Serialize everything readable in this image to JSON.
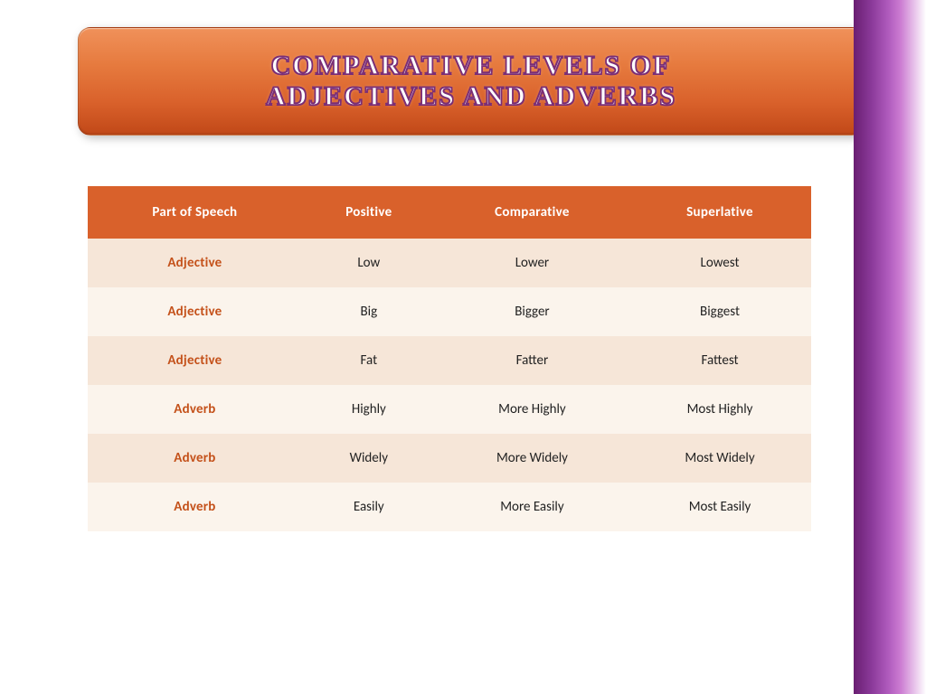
{
  "title": {
    "line1": "Comparative levels of",
    "line2": "adjectives and adverbs"
  },
  "table": {
    "columns": [
      "Part of Speech",
      "Positive",
      "Comparative",
      "Superlative"
    ],
    "rows": [
      {
        "label": "Adjective",
        "positive": "Low",
        "comparative": "Lower",
        "superlative": "Lowest"
      },
      {
        "label": "Adjective",
        "positive": "Big",
        "comparative": "Bigger",
        "superlative": "Biggest"
      },
      {
        "label": "Adjective",
        "positive": "Fat",
        "comparative": "Fatter",
        "superlative": "Fattest"
      },
      {
        "label": "Adverb",
        "positive": "Highly",
        "comparative": "More Highly",
        "superlative": "Most Highly"
      },
      {
        "label": "Adverb",
        "positive": "Widely",
        "comparative": "More Widely",
        "superlative": "Most Widely"
      },
      {
        "label": "Adverb",
        "positive": "Easily",
        "comparative": "More Easily",
        "superlative": "Most Easily"
      }
    ],
    "header_bg": "#d9612b",
    "header_fg": "#ffffff",
    "row_colors": [
      "#f6e6d8",
      "#fbf4ec"
    ],
    "label_color": "#c4511a"
  },
  "colors": {
    "banner_gradient": [
      "#f0915a",
      "#e67a3e",
      "#d9612b",
      "#c14818"
    ],
    "sidebar_gradient": [
      "#6a1f72",
      "#8b3a9a",
      "#b05bbd",
      "#cc7cd2",
      "#ffffff"
    ],
    "title_stroke": "#7b2e75"
  }
}
